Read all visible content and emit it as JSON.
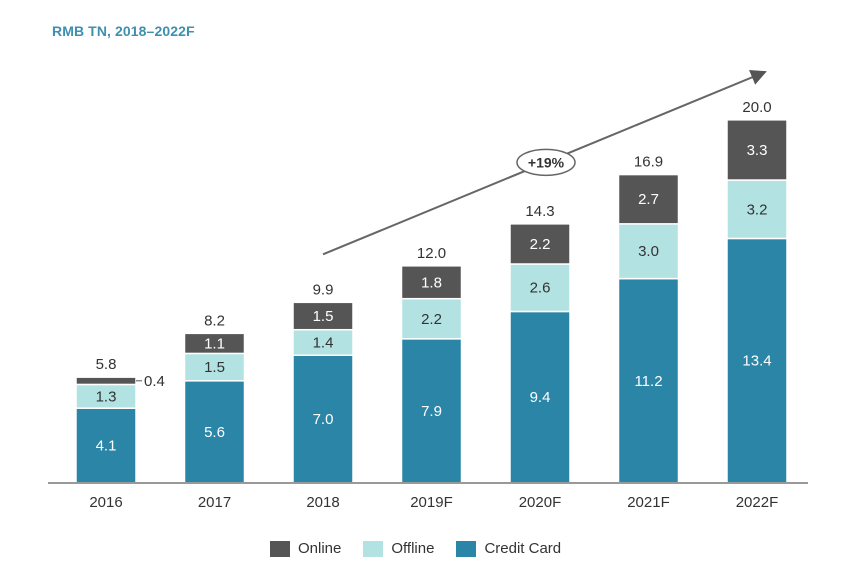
{
  "chart_data": {
    "type": "bar",
    "stacked": true,
    "title": "",
    "subtitle": "RMB TN, 2018–2022F",
    "xlabel": "",
    "ylabel": "",
    "ylim": [
      0,
      20.0
    ],
    "grid": false,
    "categories": [
      "2016",
      "2017",
      "2018",
      "2019F",
      "2020F",
      "2021F",
      "2022F"
    ],
    "series": [
      {
        "name": "Credit Card",
        "color": "#2a85a6",
        "label_color": "#ffffff",
        "values": [
          4.1,
          5.6,
          7.0,
          7.9,
          9.4,
          11.2,
          13.4
        ]
      },
      {
        "name": "Offline",
        "color": "#b2e2e2",
        "label_color": "#333333",
        "values": [
          1.3,
          1.5,
          1.4,
          2.2,
          2.6,
          3.0,
          3.2
        ]
      },
      {
        "name": "Online",
        "color": "#555555",
        "label_color": "#ffffff",
        "values": [
          0.4,
          1.1,
          1.5,
          1.8,
          2.2,
          2.7,
          3.3
        ]
      }
    ],
    "totals": [
      "5.8",
      "8.2",
      "9.9",
      "12.0",
      "14.3",
      "16.9",
      "20.0"
    ],
    "segment_labels": [
      [
        "4.1",
        "1.3",
        "0.4"
      ],
      [
        "5.6",
        "1.5",
        "1.1"
      ],
      [
        "7.0",
        "1.4",
        "1.5"
      ],
      [
        "7.9",
        "2.2",
        "1.8"
      ],
      [
        "9.4",
        "2.6",
        "2.2"
      ],
      [
        "11.2",
        "3.0",
        "2.7"
      ],
      [
        "13.4",
        "3.2",
        "3.3"
      ]
    ],
    "outside_labels": [
      {
        "category": "2016",
        "series": "Online",
        "text": "0.4"
      }
    ],
    "annotations": [
      {
        "type": "trend-arrow",
        "from_category": "2018",
        "to_category": "2022F",
        "label": "+19%"
      }
    ],
    "legend": {
      "position": "bottom-center",
      "entries": [
        {
          "name": "Online",
          "color": "#555555"
        },
        {
          "name": "Offline",
          "color": "#b2e2e2"
        },
        {
          "name": "Credit Card",
          "color": "#2a85a6"
        }
      ]
    }
  }
}
